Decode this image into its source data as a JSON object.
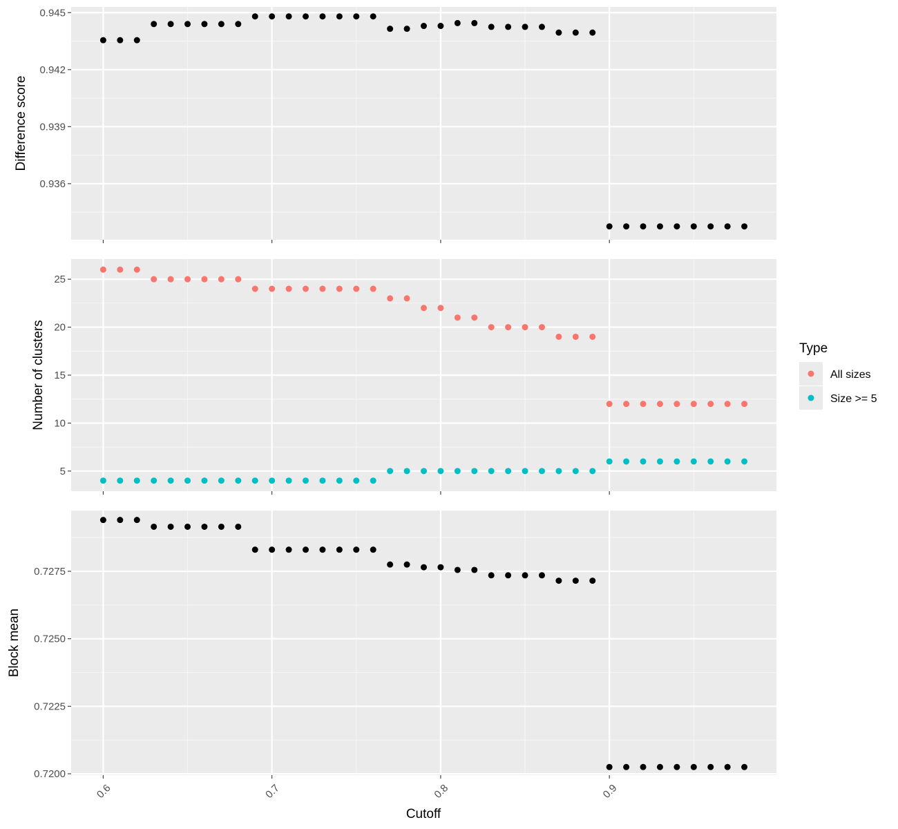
{
  "chart_data": [
    {
      "type": "scatter",
      "panel": "top",
      "ylabel": "Difference score",
      "ylim": [
        0.93305,
        0.9453
      ],
      "yticks": [
        0.936,
        0.939,
        0.942,
        0.945
      ],
      "ytick_labels": [
        "0.936",
        "0.939",
        "0.942",
        "0.945"
      ],
      "series": [
        {
          "color": "#000000",
          "points": [
            [
              0.6,
              0.94355
            ],
            [
              0.61,
              0.94355
            ],
            [
              0.62,
              0.94355
            ],
            [
              0.63,
              0.9444
            ],
            [
              0.64,
              0.9444
            ],
            [
              0.65,
              0.9444
            ],
            [
              0.66,
              0.9444
            ],
            [
              0.67,
              0.9444
            ],
            [
              0.68,
              0.9444
            ],
            [
              0.69,
              0.9448
            ],
            [
              0.7,
              0.9448
            ],
            [
              0.71,
              0.9448
            ],
            [
              0.72,
              0.9448
            ],
            [
              0.73,
              0.9448
            ],
            [
              0.74,
              0.9448
            ],
            [
              0.75,
              0.9448
            ],
            [
              0.76,
              0.9448
            ],
            [
              0.77,
              0.94415
            ],
            [
              0.78,
              0.94415
            ],
            [
              0.79,
              0.9443
            ],
            [
              0.8,
              0.9443
            ],
            [
              0.81,
              0.94445
            ],
            [
              0.82,
              0.94445
            ],
            [
              0.83,
              0.94425
            ],
            [
              0.84,
              0.94425
            ],
            [
              0.85,
              0.94425
            ],
            [
              0.86,
              0.94425
            ],
            [
              0.87,
              0.94395
            ],
            [
              0.88,
              0.94395
            ],
            [
              0.89,
              0.94395
            ],
            [
              0.9,
              0.93375
            ],
            [
              0.91,
              0.93375
            ],
            [
              0.92,
              0.93375
            ],
            [
              0.93,
              0.93375
            ],
            [
              0.94,
              0.93375
            ],
            [
              0.95,
              0.93375
            ],
            [
              0.96,
              0.93375
            ],
            [
              0.97,
              0.93375
            ],
            [
              0.98,
              0.93375
            ]
          ]
        }
      ]
    },
    {
      "type": "scatter",
      "panel": "middle",
      "ylabel": "Number of clusters",
      "ylim": [
        2.9,
        27.1
      ],
      "yticks": [
        5,
        10,
        15,
        20,
        25
      ],
      "ytick_labels": [
        "5",
        "10",
        "15",
        "20",
        "25"
      ],
      "series": [
        {
          "name": "All sizes",
          "color": "#F8766D",
          "points": [
            [
              0.6,
              26
            ],
            [
              0.61,
              26
            ],
            [
              0.62,
              26
            ],
            [
              0.63,
              25
            ],
            [
              0.64,
              25
            ],
            [
              0.65,
              25
            ],
            [
              0.66,
              25
            ],
            [
              0.67,
              25
            ],
            [
              0.68,
              25
            ],
            [
              0.69,
              24
            ],
            [
              0.7,
              24
            ],
            [
              0.71,
              24
            ],
            [
              0.72,
              24
            ],
            [
              0.73,
              24
            ],
            [
              0.74,
              24
            ],
            [
              0.75,
              24
            ],
            [
              0.76,
              24
            ],
            [
              0.77,
              23
            ],
            [
              0.78,
              23
            ],
            [
              0.79,
              22
            ],
            [
              0.8,
              22
            ],
            [
              0.81,
              21
            ],
            [
              0.82,
              21
            ],
            [
              0.83,
              20
            ],
            [
              0.84,
              20
            ],
            [
              0.85,
              20
            ],
            [
              0.86,
              20
            ],
            [
              0.87,
              19
            ],
            [
              0.88,
              19
            ],
            [
              0.89,
              19
            ],
            [
              0.9,
              12
            ],
            [
              0.91,
              12
            ],
            [
              0.92,
              12
            ],
            [
              0.93,
              12
            ],
            [
              0.94,
              12
            ],
            [
              0.95,
              12
            ],
            [
              0.96,
              12
            ],
            [
              0.97,
              12
            ],
            [
              0.98,
              12
            ]
          ]
        },
        {
          "name": "Size >= 5",
          "color": "#00BFC4",
          "points": [
            [
              0.6,
              4
            ],
            [
              0.61,
              4
            ],
            [
              0.62,
              4
            ],
            [
              0.63,
              4
            ],
            [
              0.64,
              4
            ],
            [
              0.65,
              4
            ],
            [
              0.66,
              4
            ],
            [
              0.67,
              4
            ],
            [
              0.68,
              4
            ],
            [
              0.69,
              4
            ],
            [
              0.7,
              4
            ],
            [
              0.71,
              4
            ],
            [
              0.72,
              4
            ],
            [
              0.73,
              4
            ],
            [
              0.74,
              4
            ],
            [
              0.75,
              4
            ],
            [
              0.76,
              4
            ],
            [
              0.77,
              5
            ],
            [
              0.78,
              5
            ],
            [
              0.79,
              5
            ],
            [
              0.8,
              5
            ],
            [
              0.81,
              5
            ],
            [
              0.82,
              5
            ],
            [
              0.83,
              5
            ],
            [
              0.84,
              5
            ],
            [
              0.85,
              5
            ],
            [
              0.86,
              5
            ],
            [
              0.87,
              5
            ],
            [
              0.88,
              5
            ],
            [
              0.89,
              5
            ],
            [
              0.9,
              6
            ],
            [
              0.91,
              6
            ],
            [
              0.92,
              6
            ],
            [
              0.93,
              6
            ],
            [
              0.94,
              6
            ],
            [
              0.95,
              6
            ],
            [
              0.96,
              6
            ],
            [
              0.97,
              6
            ],
            [
              0.98,
              6
            ]
          ]
        }
      ]
    },
    {
      "type": "scatter",
      "panel": "bottom",
      "ylabel": "Block mean",
      "ylim": [
        0.71995,
        0.72975
      ],
      "yticks": [
        0.72,
        0.7225,
        0.725,
        0.7275
      ],
      "ytick_labels": [
        "0.7200",
        "0.7225",
        "0.7250",
        "0.7275"
      ],
      "series": [
        {
          "color": "#000000",
          "points": [
            [
              0.6,
              0.7294
            ],
            [
              0.61,
              0.7294
            ],
            [
              0.62,
              0.7294
            ],
            [
              0.63,
              0.72915
            ],
            [
              0.64,
              0.72915
            ],
            [
              0.65,
              0.72915
            ],
            [
              0.66,
              0.72915
            ],
            [
              0.67,
              0.72915
            ],
            [
              0.68,
              0.72915
            ],
            [
              0.69,
              0.7283
            ],
            [
              0.7,
              0.7283
            ],
            [
              0.71,
              0.7283
            ],
            [
              0.72,
              0.7283
            ],
            [
              0.73,
              0.7283
            ],
            [
              0.74,
              0.7283
            ],
            [
              0.75,
              0.7283
            ],
            [
              0.76,
              0.7283
            ],
            [
              0.77,
              0.72775
            ],
            [
              0.78,
              0.72775
            ],
            [
              0.79,
              0.72765
            ],
            [
              0.8,
              0.72765
            ],
            [
              0.81,
              0.72755
            ],
            [
              0.82,
              0.72755
            ],
            [
              0.83,
              0.72735
            ],
            [
              0.84,
              0.72735
            ],
            [
              0.85,
              0.72735
            ],
            [
              0.86,
              0.72735
            ],
            [
              0.87,
              0.72715
            ],
            [
              0.88,
              0.72715
            ],
            [
              0.89,
              0.72715
            ],
            [
              0.9,
              0.72025
            ],
            [
              0.91,
              0.72025
            ],
            [
              0.92,
              0.72025
            ],
            [
              0.93,
              0.72025
            ],
            [
              0.94,
              0.72025
            ],
            [
              0.95,
              0.72025
            ],
            [
              0.96,
              0.72025
            ],
            [
              0.97,
              0.72025
            ],
            [
              0.98,
              0.72025
            ]
          ]
        }
      ]
    }
  ],
  "x_axis": {
    "xlabel": "Cutoff",
    "xlim": [
      0.581,
      0.999
    ],
    "xticks": [
      0.6,
      0.7,
      0.8,
      0.9
    ],
    "xtick_labels": [
      "0.6",
      "0.7",
      "0.8",
      "0.9"
    ]
  },
  "legend": {
    "title": "Type",
    "position": "right",
    "items": [
      {
        "label": "All sizes",
        "color": "#F8766D"
      },
      {
        "label": "Size >= 5",
        "color": "#00BFC4"
      }
    ]
  },
  "theme": {
    "panel_background": "#EBEBEB",
    "grid_major": "#FFFFFF",
    "grid_minor": "#F5F5F5",
    "tick_color": "#333333"
  }
}
